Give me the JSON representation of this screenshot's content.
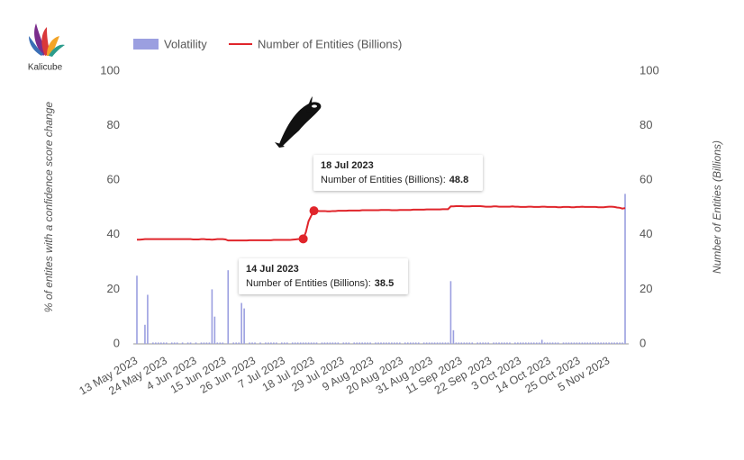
{
  "logo": {
    "text": "Kalicube"
  },
  "chart_data": {
    "type": "bar_line",
    "left_axis_label": "% of entites with a confidence score change",
    "right_axis_label": "Number of Entities (Billions)",
    "legend": "top",
    "categories": [
      "13 May 2023",
      null,
      null,
      null,
      null,
      null,
      null,
      null,
      null,
      null,
      null,
      "24 May 2023",
      null,
      null,
      null,
      null,
      null,
      null,
      null,
      null,
      null,
      null,
      "4 Jun 2023",
      null,
      null,
      null,
      null,
      null,
      null,
      null,
      null,
      null,
      null,
      "15 Jun 2023",
      null,
      null,
      null,
      null,
      null,
      null,
      null,
      null,
      null,
      null,
      "26 Jun 2023",
      null,
      null,
      null,
      null,
      null,
      null,
      null,
      null,
      null,
      null,
      "7 Jul 2023",
      null,
      null,
      null,
      null,
      null,
      null,
      null,
      null,
      null,
      null,
      "18 Jul 2023",
      null,
      null,
      null,
      null,
      null,
      null,
      null,
      null,
      null,
      null,
      "29 Jul 2023",
      null,
      null,
      null,
      null,
      null,
      null,
      null,
      null,
      null,
      null,
      "9 Aug 2023",
      null,
      null,
      null,
      null,
      null,
      null,
      null,
      null,
      null,
      null,
      "20 Aug 2023",
      null,
      null,
      null,
      null,
      null,
      null,
      null,
      null,
      null,
      null,
      "31 Aug 2023",
      null,
      null,
      null,
      null,
      null,
      null,
      null,
      null,
      null,
      null,
      "11 Sep 2023",
      null,
      null,
      null,
      null,
      null,
      null,
      null,
      null,
      null,
      null,
      "22 Sep 2023",
      null,
      null,
      null,
      null,
      null,
      null,
      null,
      null,
      null,
      null,
      "3 Oct 2023",
      null,
      null,
      null,
      null,
      null,
      null,
      null,
      null,
      null,
      null,
      "14 Oct 2023",
      null,
      null,
      null,
      null,
      null,
      null,
      null,
      null,
      null,
      null,
      "25 Oct 2023",
      null,
      null,
      null,
      null,
      null,
      null,
      null,
      null,
      null,
      null,
      "5 Nov 2023",
      null,
      null,
      null,
      null,
      null,
      null
    ],
    "series": [
      {
        "name": "Volatility",
        "type": "bar",
        "axis": "y",
        "color": "#9b9fe0",
        "values": [
          25,
          0,
          0,
          7,
          18,
          0,
          0.5,
          0.5,
          0.5,
          0.5,
          0.5,
          0.5,
          0,
          0.5,
          0.5,
          0.5,
          0,
          0.5,
          0,
          0.5,
          0.5,
          0,
          0.5,
          0,
          0.5,
          0.5,
          0.5,
          0.5,
          20,
          10,
          0.5,
          0.5,
          0.5,
          0,
          27,
          0,
          0.5,
          0.5,
          0.5,
          15,
          13,
          0,
          0.5,
          0.5,
          0.5,
          0,
          0.5,
          0,
          0.5,
          0.5,
          0.5,
          0.5,
          0.5,
          0,
          0.5,
          0.5,
          0.5,
          0,
          0.5,
          0.5,
          0.5,
          0.5,
          0.5,
          0.5,
          0.5,
          0.5,
          0.5,
          0.5,
          0,
          0.5,
          0.5,
          0.5,
          0.5,
          0.5,
          0.5,
          0.5,
          0,
          0.5,
          0.5,
          0.5,
          0,
          0.5,
          0.5,
          0.5,
          0.5,
          0.5,
          0.5,
          0.5,
          0,
          0.5,
          0.5,
          0.5,
          0.5,
          0.5,
          0.5,
          0.5,
          0.5,
          0.5,
          0.5,
          0,
          0.5,
          0.5,
          0.5,
          0.5,
          0.5,
          0.5,
          0,
          0.5,
          0.5,
          0.5,
          0.5,
          0.5,
          0.5,
          0.5,
          0.5,
          0.5,
          0.5,
          23,
          5,
          0.5,
          0.5,
          0.5,
          0.5,
          0.5,
          0.5,
          0.5,
          0,
          0.5,
          0.5,
          0.5,
          0.5,
          0.5,
          0,
          0.5,
          0.5,
          0.5,
          0.5,
          0.5,
          0.5,
          0.5,
          0,
          0.5,
          0.5,
          0.5,
          0.5,
          0.5,
          0.5,
          0.5,
          0.5,
          0.5,
          0.5,
          1.5,
          0.5,
          0.5,
          0.5,
          0.5,
          0.5,
          0.5,
          0,
          0.5,
          0.5,
          0.5,
          0.5,
          0.5,
          0.5,
          0.5,
          0.5,
          0.5,
          0.5,
          0.5,
          0.5,
          0.5,
          0.5,
          0.5,
          0.5,
          0.5,
          0.5,
          0.5,
          0.5,
          0.5,
          0.5,
          0.5,
          55
        ]
      },
      {
        "name": "Number of Entities (Billions)",
        "type": "line",
        "axis": "y2",
        "color": "#e0252b",
        "values": [
          38.2,
          38.2,
          38.3,
          38.4,
          38.4,
          38.4,
          38.4,
          38.4,
          38.4,
          38.4,
          38.4,
          38.4,
          38.4,
          38.4,
          38.4,
          38.4,
          38.4,
          38.4,
          38.4,
          38.4,
          38.4,
          38.3,
          38.3,
          38.3,
          38.4,
          38.4,
          38.3,
          38.3,
          38.2,
          38.3,
          38.4,
          38.4,
          38.4,
          38.3,
          37.9,
          37.9,
          37.9,
          37.9,
          37.9,
          37.9,
          37.9,
          37.9,
          38.0,
          38.0,
          38.0,
          38.0,
          38.0,
          38.0,
          38.0,
          38.0,
          38.0,
          38.1,
          38.1,
          38.1,
          38.1,
          38.1,
          38.1,
          38.1,
          38.2,
          38.3,
          38.4,
          38.4,
          38.5,
          41,
          45,
          47,
          48.8,
          48.8,
          48.7,
          48.7,
          48.7,
          48.6,
          48.6,
          48.7,
          48.7,
          48.8,
          48.8,
          48.8,
          48.8,
          48.9,
          48.9,
          48.9,
          48.9,
          48.9,
          49.0,
          49.0,
          49.0,
          49.0,
          49.0,
          49.0,
          49.0,
          49.1,
          49.1,
          49.1,
          49.1,
          49.0,
          49.0,
          49.0,
          49.1,
          49.1,
          49.1,
          49.1,
          49.1,
          49.2,
          49.2,
          49.2,
          49.2,
          49.2,
          49.3,
          49.3,
          49.3,
          49.3,
          49.3,
          49.3,
          49.4,
          49.4,
          49.4,
          50.4,
          50.4,
          50.5,
          50.5,
          50.5,
          50.4,
          50.4,
          50.4,
          50.5,
          50.5,
          50.5,
          50.5,
          50.4,
          50.3,
          50.3,
          50.3,
          50.4,
          50.4,
          50.3,
          50.3,
          50.3,
          50.3,
          50.3,
          50.4,
          50.3,
          50.3,
          50.2,
          50.2,
          50.2,
          50.3,
          50.3,
          50.2,
          50.2,
          50.2,
          50.3,
          50.3,
          50.2,
          50.2,
          50.2,
          50.2,
          50.1,
          50.1,
          50.2,
          50.2,
          50.2,
          50.1,
          50.1,
          50.2,
          50.2,
          50.3,
          50.2,
          50.2,
          50.2,
          50.2,
          50.2,
          50.1,
          50.1,
          50.1,
          50.2,
          50.3,
          50.3,
          50.2,
          50.0,
          49.9,
          49.6,
          49.8
        ]
      }
    ],
    "ylim": [
      0,
      100
    ],
    "yticks": [
      0,
      20,
      40,
      60,
      80,
      100
    ],
    "y2lim": [
      0,
      100
    ],
    "y2ticks": [
      0,
      20,
      40,
      60,
      80,
      100
    ],
    "tooltips": [
      {
        "date": "14 Jul 2023",
        "label": "Number of Entities (Billions):"
      },
      {
        "date": "18 Jul 2023",
        "label": "Number of Entities (Billions):"
      }
    ]
  }
}
